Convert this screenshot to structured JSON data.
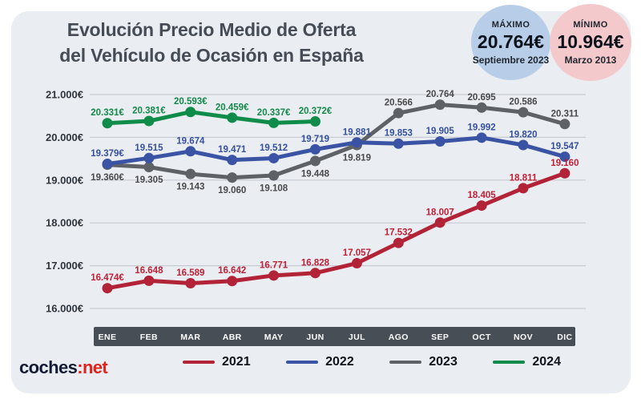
{
  "header": {
    "title_lines": [
      "Evolución Precio Medio de Oferta",
      "del Vehículo de Ocasión en España"
    ]
  },
  "badges": {
    "max": {
      "label": "MÁXIMO",
      "value": "20.764€",
      "date": "Septiembre 2023",
      "bg": "#b7cde8"
    },
    "min": {
      "label": "MÍNIMO",
      "value": "10.964€",
      "date": "Marzo 2013",
      "bg": "#f4c9cc"
    }
  },
  "logo": {
    "dark": "coches",
    "red": ":net"
  },
  "chart_data": {
    "type": "line",
    "title": "Evolución Precio Medio de Oferta del Vehículo de Ocasión en España",
    "categories": [
      "ENE",
      "FEB",
      "MAR",
      "ABR",
      "MAY",
      "JUN",
      "JUL",
      "AGO",
      "SEP",
      "OCT",
      "NOV",
      "DIC"
    ],
    "y_axis": {
      "tick_labels": [
        "21.000€",
        "20.000€",
        "19.000€",
        "18.000€",
        "17.000€",
        "16.000€"
      ],
      "tick_values": [
        21000,
        20000,
        19000,
        18000,
        17000,
        16000
      ]
    },
    "ylim": [
      16000,
      21000
    ],
    "grid": true,
    "legend_position": "bottom",
    "axis_band_color": "#484e55",
    "series": [
      {
        "name": "2021",
        "color": "#b32338",
        "label_color": "#c01f36",
        "values": [
          16474,
          16648,
          16589,
          16642,
          16771,
          16828,
          17057,
          17532,
          18007,
          18405,
          18811,
          19160
        ],
        "point_labels": [
          "16.474€",
          "16.648",
          "16.589",
          "16.642",
          "16.771",
          "16.828",
          "17.057",
          "17.532",
          "18.007",
          "18.405",
          "18.811",
          "19.160"
        ],
        "label_sides": [
          "above",
          "above",
          "above",
          "above",
          "above",
          "above",
          "above",
          "above",
          "above",
          "above",
          "above",
          "above"
        ]
      },
      {
        "name": "2022",
        "color": "#3a53a4",
        "label_color": "#35509e",
        "values": [
          19379,
          19515,
          19674,
          19471,
          19512,
          19719,
          19881,
          19853,
          19905,
          19992,
          19820,
          19547
        ],
        "point_labels": [
          "19.379€",
          "19.515",
          "19.674",
          "19.471",
          "19.512",
          "19.719",
          "19.881",
          "19.853",
          "19.905",
          "19.992",
          "19.820",
          "19.547"
        ],
        "label_sides": [
          "above",
          "above",
          "above",
          "above",
          "above",
          "above",
          "above",
          "above",
          "above",
          "above",
          "above",
          "above"
        ]
      },
      {
        "name": "2023",
        "color": "#5e6165",
        "label_color": "#48494c",
        "values": [
          19360,
          19305,
          19143,
          19060,
          19108,
          19448,
          19819,
          20566,
          20764,
          20695,
          20586,
          20311
        ],
        "point_labels": [
          "19.360€",
          "19.305",
          "19.143",
          "19.060",
          "19.108",
          "19.448",
          "19.819",
          "20.566",
          "20.764",
          "20.695",
          "20.586",
          "20.311"
        ],
        "label_sides": [
          "below",
          "below",
          "below",
          "below",
          "below",
          "below",
          "below",
          "above",
          "above",
          "above",
          "above",
          "above"
        ]
      },
      {
        "name": "2024",
        "color": "#0f8c4a",
        "label_color": "#13894a",
        "values": [
          20331,
          20381,
          20593,
          20459,
          20337,
          20372
        ],
        "point_labels": [
          "20.331€",
          "20.381€",
          "20.593€",
          "20.459€",
          "20.337€",
          "20.372€"
        ],
        "label_sides": [
          "above",
          "above",
          "above",
          "above",
          "above",
          "above"
        ]
      }
    ]
  }
}
